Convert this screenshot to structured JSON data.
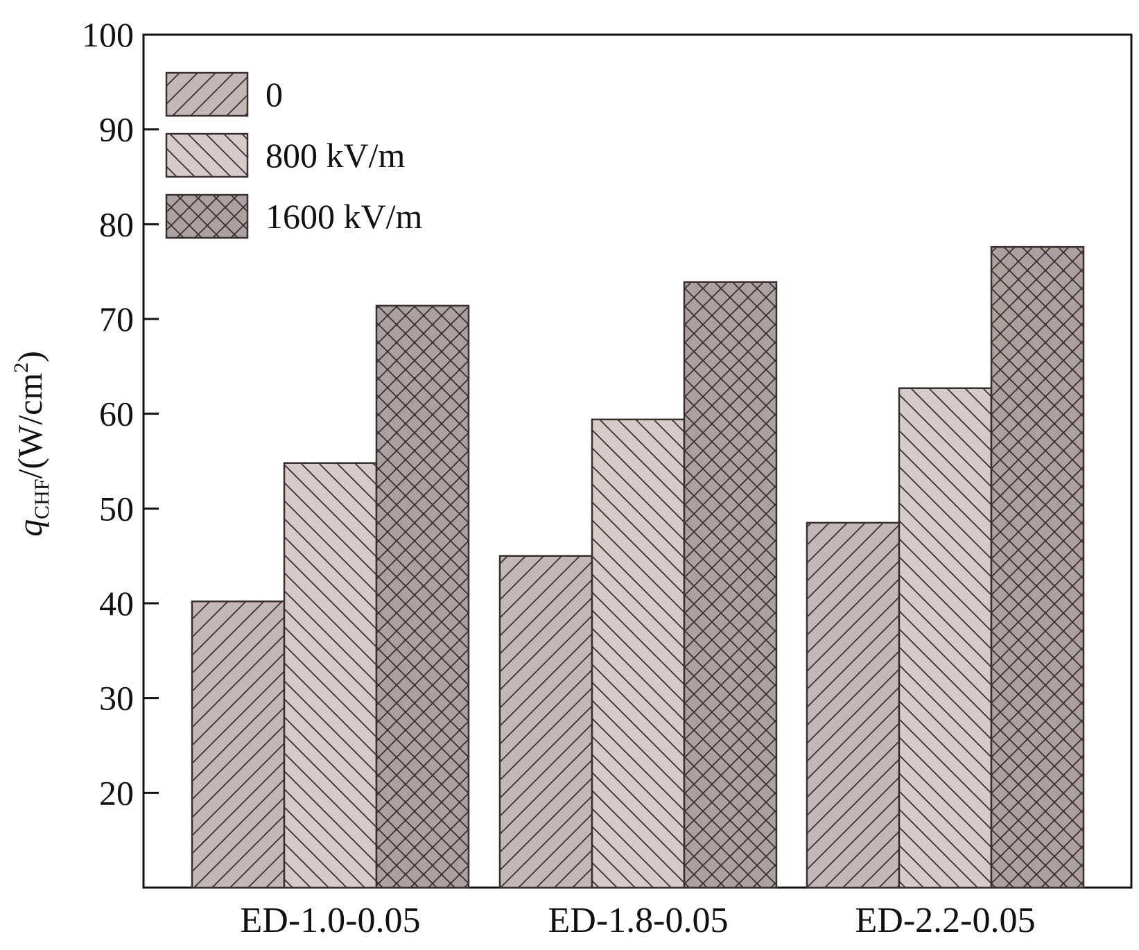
{
  "chart_data": {
    "type": "bar",
    "title": "",
    "xlabel": "",
    "ylabel": {
      "symbol": "q",
      "subscript": "CHF",
      "unit_prefix": "/(W/cm",
      "unit_sup": "2",
      "unit_suffix": ")"
    },
    "ylim": [
      10,
      100
    ],
    "yticks": [
      20,
      30,
      40,
      50,
      60,
      70,
      80,
      90,
      100
    ],
    "categories": [
      "ED-1.0-0.05",
      "ED-1.8-0.05",
      "ED-2.2-0.05"
    ],
    "series": [
      {
        "name": "0",
        "values": [
          40.2,
          45.0,
          48.5
        ],
        "color": "#c3b8b5",
        "pattern": "forward-hatch"
      },
      {
        "name": "800 kV/m",
        "values": [
          54.8,
          59.4,
          62.7
        ],
        "color": "#d5cbc8",
        "pattern": "back-hatch"
      },
      {
        "name": "1600 kV/m",
        "values": [
          71.4,
          73.9,
          77.6
        ],
        "color": "#aca19e",
        "pattern": "cross-hatch"
      }
    ],
    "legend_position": "top-left",
    "grid": false
  }
}
